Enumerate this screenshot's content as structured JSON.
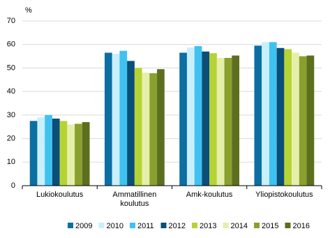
{
  "chart_data": {
    "type": "bar",
    "y_label": "%",
    "categories": [
      "Lukiokoulutus",
      "Ammatillinen koulutus",
      "Amk-koulutus",
      "Yliopistokoulutus"
    ],
    "series": [
      {
        "name": "2009",
        "color": "#0b6fa3",
        "values": [
          27.5,
          56.5,
          56.5,
          59.5
        ]
      },
      {
        "name": "2010",
        "color": "#c9eefc",
        "values": [
          29,
          56,
          58.7,
          61
        ]
      },
      {
        "name": "2011",
        "color": "#3fc2ef",
        "values": [
          30,
          57.3,
          59.3,
          61
        ]
      },
      {
        "name": "2012",
        "color": "#0b4e78",
        "values": [
          28.5,
          53,
          57,
          58.5
        ]
      },
      {
        "name": "2013",
        "color": "#b6d335",
        "values": [
          27.5,
          50,
          56.3,
          58
        ]
      },
      {
        "name": "2014",
        "color": "#e5efaa",
        "values": [
          26,
          48,
          54.3,
          56.5
        ]
      },
      {
        "name": "2015",
        "color": "#8aa02e",
        "values": [
          26.3,
          47.8,
          54.3,
          55
        ]
      },
      {
        "name": "2016",
        "color": "#5c6f1f",
        "values": [
          27,
          49.5,
          55.3,
          55.3
        ]
      }
    ],
    "ylim": [
      0,
      70
    ],
    "yticks": [
      0,
      10,
      20,
      30,
      40,
      50,
      60,
      70
    ],
    "grid": true
  }
}
